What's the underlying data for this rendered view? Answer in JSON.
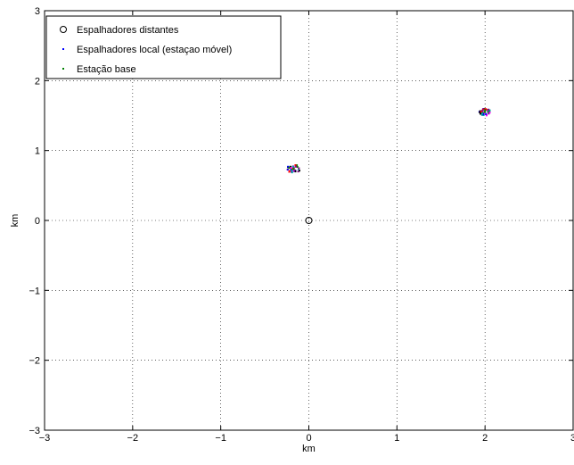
{
  "chart_data": {
    "type": "scatter",
    "title": "",
    "xlabel": "km",
    "ylabel": "km",
    "xlim": [
      -3,
      3
    ],
    "ylim": [
      -3,
      3
    ],
    "xticks": [
      -3,
      -2,
      -1,
      0,
      1,
      2,
      3
    ],
    "yticks": [
      -3,
      -2,
      -1,
      0,
      1,
      2,
      3
    ],
    "xtick_labels": [
      "−3",
      "−2",
      "−1",
      "0",
      "1",
      "2",
      "3"
    ],
    "ytick_labels": [
      "−3",
      "−2",
      "−1",
      "0",
      "1",
      "2",
      "3"
    ],
    "grid": true,
    "legend_position": "top-left",
    "legend": [
      {
        "label": "Espalhadores distantes",
        "marker": "circle-open",
        "color": "#000000"
      },
      {
        "label": "Espalhadores local (estaçao móvel)",
        "marker": "dot",
        "color": "#0000ff"
      },
      {
        "label": "Estação base",
        "marker": "dot",
        "color": "#008000"
      }
    ],
    "series": [
      {
        "name": "Espalhadores distantes",
        "marker": "circle-open",
        "color": "#000000",
        "points": [
          [
            0,
            0
          ]
        ]
      },
      {
        "name": "Espalhadores local (estaçao móvel)",
        "marker": "dot",
        "color": "#0000ff",
        "clusters": [
          {
            "center": [
              -0.17,
              0.74
            ],
            "spread": 0.06,
            "count": 40
          },
          {
            "center": [
              2.0,
              1.55
            ],
            "spread": 0.05,
            "count": 40
          }
        ],
        "point_colors": [
          "#0000ff",
          "#ff0000",
          "#800080",
          "#008000",
          "#00aaaa",
          "#ff00ff",
          "#000000"
        ]
      },
      {
        "name": "Estação base",
        "marker": "dot",
        "color": "#008000",
        "points": [
          [
            -0.17,
            0.74
          ],
          [
            2.0,
            1.55
          ]
        ]
      }
    ]
  }
}
